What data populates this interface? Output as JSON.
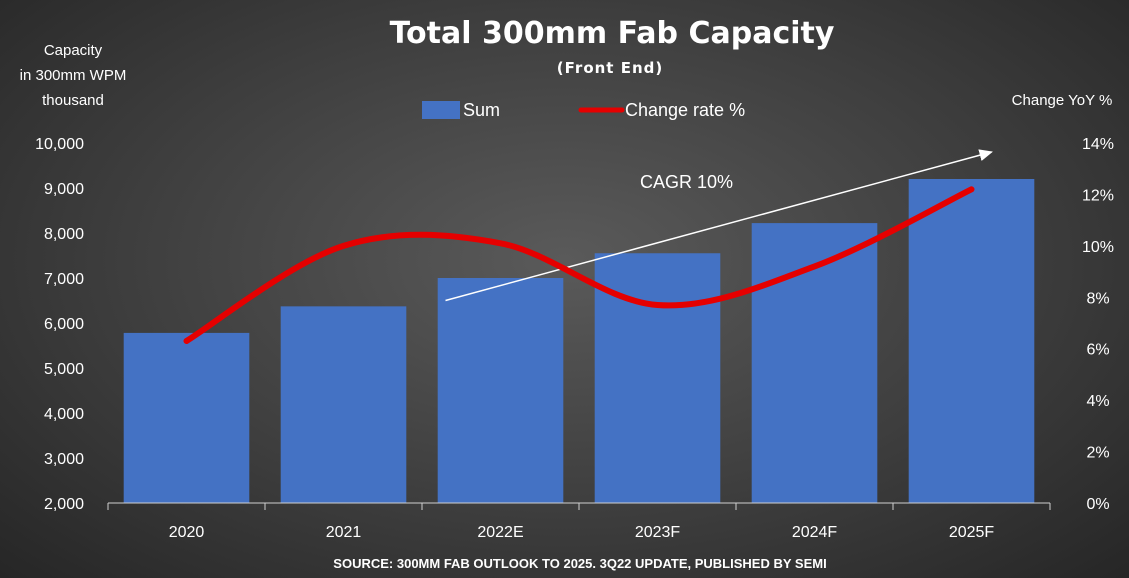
{
  "chart_data": {
    "type": "bar",
    "title": "Total 300mm Fab Capacity",
    "subtitle": "(Front End)",
    "ylabel_lines": [
      "Capacity",
      "in 300mm WPM",
      "thousand"
    ],
    "y2label": "Change YoY %",
    "categories": [
      "2020",
      "2021",
      "2022E",
      "2023F",
      "2024F",
      "2025F"
    ],
    "ylim": [
      2000,
      10000
    ],
    "y_ticks": [
      "2,000",
      "3,000",
      "4,000",
      "5,000",
      "6,000",
      "7,000",
      "8,000",
      "9,000",
      "10,000"
    ],
    "y2lim": [
      0,
      14
    ],
    "y2_ticks": [
      "0%",
      "2%",
      "4%",
      "6%",
      "8%",
      "10%",
      "12%",
      "14%"
    ],
    "series": [
      {
        "name": "Sum",
        "type": "bar",
        "axis": "left",
        "color": "#4472C4",
        "values": [
          5780,
          6370,
          7000,
          7550,
          8220,
          9200
        ]
      },
      {
        "name": "Change rate %",
        "type": "line",
        "axis": "right",
        "color": "#E50000",
        "values": [
          6.3,
          10.0,
          10.1,
          7.7,
          9.2,
          12.2
        ]
      }
    ],
    "annotation": {
      "text": "CAGR 10%",
      "arrow_from": [
        "2022E",
        6500
      ],
      "arrow_to": [
        "2025F",
        9800
      ]
    },
    "legend_position": "top",
    "source": "SOURCE: 300MM FAB OUTLOOK TO 2025. 3Q22 UPDATE, PUBLISHED BY SEMI"
  }
}
